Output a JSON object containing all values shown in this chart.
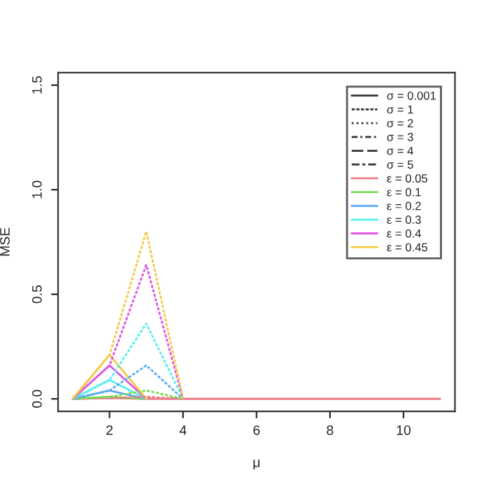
{
  "chart_data": {
    "type": "line",
    "xlabel": "μ",
    "ylabel": "MSE",
    "x": [
      1,
      2,
      3,
      4,
      5,
      6,
      7,
      8,
      9,
      10,
      11
    ],
    "xlim": [
      0.6,
      11.4
    ],
    "ylim": [
      -0.06,
      1.56
    ],
    "xticks": [
      2,
      4,
      6,
      8,
      10
    ],
    "yticks": [
      {
        "value": 0,
        "label": "0.0"
      },
      {
        "value": 0.5,
        "label": "0.5"
      },
      {
        "value": 1,
        "label": "1.0"
      },
      {
        "value": 1.5,
        "label": "1.5"
      }
    ],
    "grid": false,
    "legend": "top right",
    "marker": "none",
    "series": [
      {
        "color": "#ee7a85",
        "line_style": "solid",
        "values": [
          0,
          0.004,
          0,
          0,
          0,
          0,
          0,
          0,
          0,
          0,
          0
        ]
      },
      {
        "color": "#77dd55",
        "line_style": "solid",
        "values": [
          0,
          0.01,
          0,
          null,
          null,
          null,
          null,
          null,
          null,
          null,
          null
        ]
      },
      {
        "color": "#5aaaf0",
        "line_style": "solid",
        "values": [
          0,
          0.04,
          0,
          null,
          null,
          null,
          null,
          null,
          null,
          null,
          null
        ]
      },
      {
        "color": "#55eeee",
        "line_style": "solid",
        "values": [
          0,
          0.09,
          0,
          null,
          null,
          null,
          null,
          null,
          null,
          null,
          null
        ]
      },
      {
        "color": "#e055e0",
        "line_style": "solid",
        "values": [
          0,
          0.16,
          0,
          null,
          null,
          null,
          null,
          null,
          null,
          null,
          null
        ]
      },
      {
        "color": "#f5c842",
        "line_style": "solid",
        "values": [
          0,
          0.21,
          0,
          null,
          null,
          null,
          null,
          null,
          null,
          null,
          null
        ]
      },
      {
        "color": "#ee7a85",
        "line_style": "dashed",
        "values": [
          0,
          0.004,
          0.01,
          0,
          null,
          null,
          null,
          null,
          null,
          null,
          null
        ]
      },
      {
        "color": "#77dd55",
        "line_style": "dashed",
        "values": [
          0,
          0.01,
          0.04,
          0,
          null,
          null,
          null,
          null,
          null,
          null,
          null
        ]
      },
      {
        "color": "#5aaaf0",
        "line_style": "dashed",
        "values": [
          0,
          0.04,
          0.16,
          0,
          null,
          null,
          null,
          null,
          null,
          null,
          null
        ]
      },
      {
        "color": "#55eeee",
        "line_style": "dashed",
        "values": [
          0,
          0.09,
          0.36,
          0,
          null,
          null,
          null,
          null,
          null,
          null,
          null
        ]
      },
      {
        "color": "#e055e0",
        "line_style": "dashed",
        "values": [
          0,
          0.16,
          0.64,
          0,
          null,
          null,
          null,
          null,
          null,
          null,
          null
        ]
      },
      {
        "color": "#f5c842",
        "line_style": "dashed",
        "values": [
          0,
          0.21,
          0.8,
          0,
          null,
          null,
          null,
          null,
          null,
          null,
          null
        ]
      },
      {
        "name": "σ = 0.001",
        "color": "#333333",
        "line_style": "solid",
        "values": [
          null,
          null,
          null,
          null,
          null,
          null,
          null,
          null,
          null,
          null,
          null
        ]
      },
      {
        "name": "σ = 1",
        "color": "#333333",
        "line_style": "dashed",
        "values": [
          null,
          null,
          null,
          null,
          null,
          null,
          null,
          null,
          null,
          null,
          null
        ]
      },
      {
        "name": "σ = 2",
        "color": "#333333",
        "line_style": "dotted",
        "values": [
          null,
          null,
          null,
          null,
          null,
          null,
          null,
          null,
          null,
          null,
          null
        ]
      },
      {
        "name": "σ = 3",
        "color": "#333333",
        "line_style": "dashdot",
        "values": [
          null,
          null,
          null,
          null,
          null,
          null,
          null,
          null,
          null,
          null,
          null
        ]
      },
      {
        "name": "σ = 4",
        "color": "#333333",
        "line_style": "longdash",
        "values": [
          null,
          null,
          null,
          null,
          null,
          null,
          null,
          null,
          null,
          null,
          null
        ]
      },
      {
        "name": "σ = 5",
        "color": "#333333",
        "line_style": "twodash",
        "values": [
          null,
          null,
          null,
          null,
          null,
          null,
          null,
          null,
          null,
          null,
          null
        ]
      },
      {
        "name": "ε = 0.05",
        "color": "#ee7a85",
        "line_style": "solid",
        "values": [
          null,
          null,
          null,
          null,
          null,
          null,
          null,
          null,
          null,
          null,
          null
        ]
      },
      {
        "name": "ε = 0.1",
        "color": "#77dd55",
        "line_style": "solid",
        "values": [
          null,
          null,
          null,
          null,
          null,
          null,
          null,
          null,
          null,
          null,
          null
        ]
      },
      {
        "name": "ε = 0.2",
        "color": "#5aaaf0",
        "line_style": "solid",
        "values": [
          null,
          null,
          null,
          null,
          null,
          null,
          null,
          null,
          null,
          null,
          null
        ]
      },
      {
        "name": "ε = 0.3",
        "color": "#55eeee",
        "line_style": "solid",
        "values": [
          null,
          null,
          null,
          null,
          null,
          null,
          null,
          null,
          null,
          null,
          null
        ]
      },
      {
        "name": "ε = 0.4",
        "color": "#e055e0",
        "line_style": "solid",
        "values": [
          null,
          null,
          null,
          null,
          null,
          null,
          null,
          null,
          null,
          null,
          null
        ]
      },
      {
        "name": "ε = 0.45",
        "color": "#f5c842",
        "line_style": "solid",
        "values": [
          null,
          null,
          null,
          null,
          null,
          null,
          null,
          null,
          null,
          null,
          null
        ]
      }
    ]
  }
}
